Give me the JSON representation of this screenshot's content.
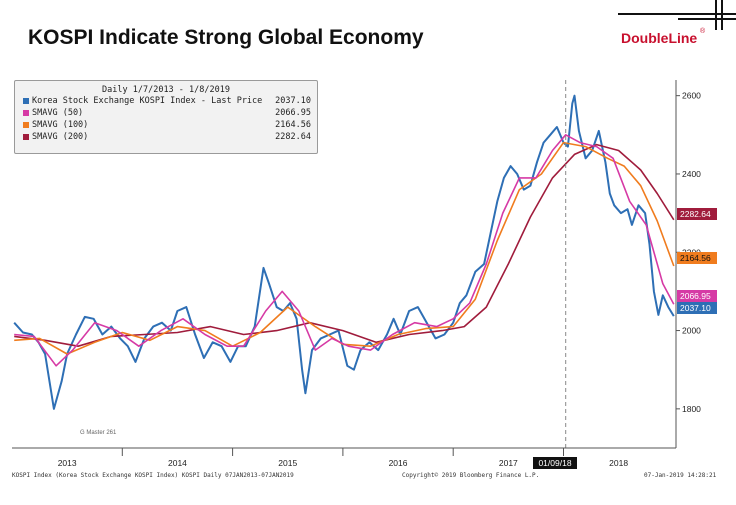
{
  "header": {
    "title": "KOSPI Indicate Strong Global Economy",
    "logo": "DoubleLine",
    "logo_mark": "®"
  },
  "footer": {
    "left": "KOSPI Index (Korea Stock Exchange KOSPI Index) KOSPI  Daily 07JAN2013-07JAN2019",
    "center": "Copyright© 2019 Bloomberg Finance L.P.",
    "right": "07-Jan-2019 14:28:21"
  },
  "chart_data": {
    "type": "line",
    "legend_header": "Daily 1/7/2013 - 1/8/2019",
    "legend_position": "top-left",
    "watermark": "G Master 261",
    "cursor_label": "01/09/18",
    "cursor_x": 2018.02,
    "xlim": [
      2013.0,
      2019.02
    ],
    "ylim": [
      1700,
      2640
    ],
    "y_ticks": [
      1800,
      2000,
      2200,
      2400,
      2600
    ],
    "y_tick_labels": [
      "1800",
      "2000",
      "2200",
      "2400",
      "2600"
    ],
    "x_tick_labels": [
      {
        "label": "2013",
        "x": 2013.5
      },
      {
        "label": "2014",
        "x": 2014.5
      },
      {
        "label": "2015",
        "x": 2015.5
      },
      {
        "label": "2016",
        "x": 2016.5
      },
      {
        "label": "2017",
        "x": 2017.5
      },
      {
        "label": "2018",
        "x": 2018.5
      }
    ],
    "series": [
      {
        "name": "Korea Stock Exchange KOSPI Index - Last Price",
        "last": "2037.10",
        "color": "#2e6fb5",
        "x": [
          2013.02,
          2013.1,
          2013.18,
          2013.24,
          2013.3,
          2013.38,
          2013.45,
          2013.5,
          2013.58,
          2013.66,
          2013.74,
          2013.82,
          2013.9,
          2013.98,
          2014.05,
          2014.12,
          2014.2,
          2014.28,
          2014.36,
          2014.44,
          2014.5,
          2014.58,
          2014.66,
          2014.74,
          2014.82,
          2014.9,
          2014.98,
          2015.05,
          2015.12,
          2015.2,
          2015.28,
          2015.33,
          2015.4,
          2015.46,
          2015.52,
          2015.58,
          2015.63,
          2015.66,
          2015.72,
          2015.8,
          2015.88,
          2015.96,
          2016.04,
          2016.1,
          2016.16,
          2016.24,
          2016.32,
          2016.4,
          2016.46,
          2016.52,
          2016.6,
          2016.68,
          2016.76,
          2016.84,
          2016.92,
          2017.0,
          2017.06,
          2017.12,
          2017.2,
          2017.28,
          2017.34,
          2017.4,
          2017.46,
          2017.52,
          2017.58,
          2017.64,
          2017.7,
          2017.76,
          2017.82,
          2017.88,
          2017.94,
          2018.0,
          2018.04,
          2018.08,
          2018.1,
          2018.14,
          2018.2,
          2018.26,
          2018.32,
          2018.38,
          2018.42,
          2018.46,
          2018.52,
          2018.58,
          2018.62,
          2018.68,
          2018.74,
          2018.78,
          2018.82,
          2018.86,
          2018.9,
          2018.95,
          2019.0
        ],
        "y": [
          2020,
          1995,
          1990,
          1970,
          1940,
          1800,
          1870,
          1940,
          1990,
          2035,
          2030,
          1990,
          2010,
          1980,
          1960,
          1920,
          1980,
          2010,
          2020,
          2000,
          2050,
          2060,
          1990,
          1930,
          1970,
          1960,
          1920,
          1960,
          1960,
          2010,
          2160,
          2120,
          2060,
          2050,
          2070,
          2030,
          1900,
          1840,
          1950,
          1980,
          1990,
          2000,
          1910,
          1900,
          1950,
          1970,
          1950,
          1990,
          2030,
          1990,
          2050,
          2060,
          2020,
          1980,
          1990,
          2020,
          2070,
          2090,
          2150,
          2170,
          2250,
          2330,
          2390,
          2420,
          2400,
          2360,
          2370,
          2430,
          2480,
          2500,
          2520,
          2480,
          2470,
          2580,
          2600,
          2510,
          2440,
          2460,
          2510,
          2430,
          2350,
          2320,
          2300,
          2310,
          2270,
          2320,
          2300,
          2220,
          2100,
          2040,
          2090,
          2060,
          2037
        ]
      },
      {
        "name": "SMAVG (50)",
        "last": "2066.95",
        "color": "#d63aa5",
        "x": [
          2013.02,
          2013.2,
          2013.4,
          2013.55,
          2013.75,
          2013.95,
          2014.15,
          2014.35,
          2014.55,
          2014.75,
          2014.95,
          2015.1,
          2015.3,
          2015.45,
          2015.6,
          2015.75,
          2015.9,
          2016.05,
          2016.25,
          2016.45,
          2016.65,
          2016.85,
          2017.0,
          2017.15,
          2017.3,
          2017.45,
          2017.6,
          2017.75,
          2017.9,
          2018.02,
          2018.15,
          2018.3,
          2018.45,
          2018.6,
          2018.75,
          2018.9,
          2019.0
        ],
        "y": [
          1990,
          1985,
          1910,
          1950,
          2020,
          2000,
          1960,
          2000,
          2030,
          1990,
          1960,
          1960,
          2050,
          2100,
          2050,
          1950,
          1980,
          1960,
          1950,
          1990,
          2020,
          2010,
          2030,
          2070,
          2170,
          2300,
          2390,
          2390,
          2460,
          2500,
          2480,
          2470,
          2440,
          2330,
          2270,
          2120,
          2067
        ]
      },
      {
        "name": "SMAVG (100)",
        "last": "2164.56",
        "color": "#f07c1e",
        "x": [
          2013.02,
          2013.25,
          2013.5,
          2013.75,
          2014.0,
          2014.25,
          2014.5,
          2014.75,
          2015.0,
          2015.25,
          2015.5,
          2015.75,
          2016.0,
          2016.25,
          2016.5,
          2016.75,
          2017.0,
          2017.2,
          2017.4,
          2017.6,
          2017.8,
          2018.0,
          2018.2,
          2018.4,
          2018.55,
          2018.7,
          2018.85,
          2019.0
        ],
        "y": [
          1975,
          1980,
          1940,
          1970,
          1995,
          1975,
          2010,
          2000,
          1960,
          1995,
          2060,
          2010,
          1965,
          1960,
          1990,
          2005,
          2010,
          2080,
          2230,
          2360,
          2400,
          2480,
          2470,
          2440,
          2420,
          2370,
          2280,
          2165
        ]
      },
      {
        "name": "SMAVG (200)",
        "last": "2282.64",
        "color": "#a01c3c",
        "x": [
          2013.02,
          2013.3,
          2013.6,
          2013.9,
          2014.2,
          2014.5,
          2014.8,
          2015.1,
          2015.4,
          2015.7,
          2016.0,
          2016.3,
          2016.6,
          2016.9,
          2017.1,
          2017.3,
          2017.5,
          2017.7,
          2017.9,
          2018.1,
          2018.3,
          2018.5,
          2018.7,
          2018.85,
          2019.0
        ],
        "y": [
          1985,
          1975,
          1960,
          1985,
          1990,
          1995,
          2010,
          1990,
          2000,
          2020,
          2000,
          1970,
          1990,
          2000,
          2010,
          2060,
          2170,
          2290,
          2390,
          2450,
          2475,
          2460,
          2410,
          2350,
          2283
        ]
      }
    ]
  }
}
